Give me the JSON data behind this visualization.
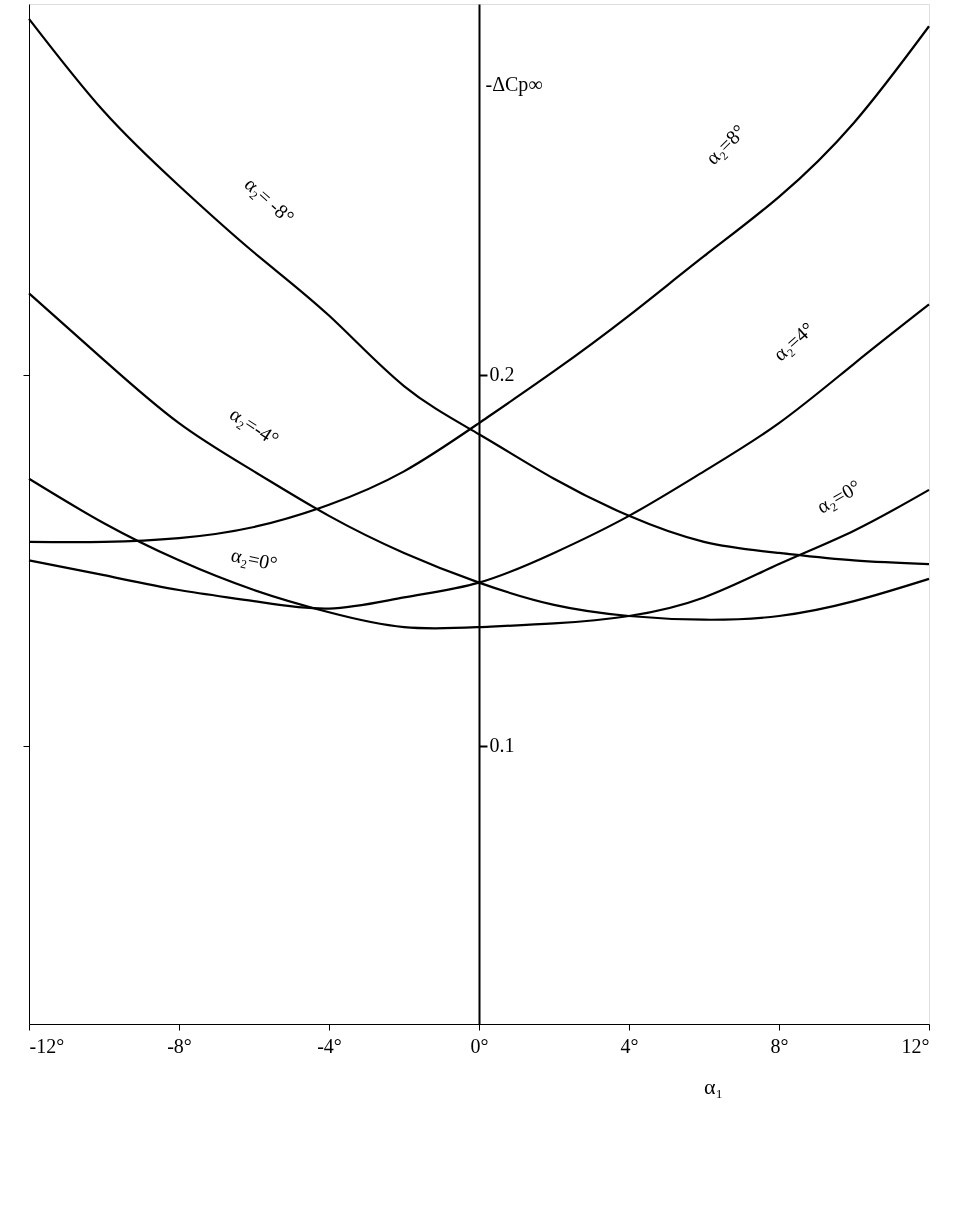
{
  "chart_data": {
    "type": "line",
    "xlabel": "α₁",
    "ylabel": "-ΔCp∞",
    "x": [
      -12,
      -10,
      -8,
      -6,
      -4,
      -2,
      0,
      2,
      4,
      6,
      8,
      10,
      12
    ],
    "series": [
      {
        "color": "#000000",
        "values": [
          0.296,
          0.271,
          0.251,
          0.233,
          0.216,
          0.197,
          0.184,
          0.172,
          0.162,
          0.155,
          0.152,
          0.15,
          0.149
        ]
      },
      {
        "color": "#000000",
        "values": [
          0.222,
          0.204,
          0.187,
          0.174,
          0.162,
          0.152,
          0.144,
          0.138,
          0.135,
          0.134,
          0.135,
          0.139,
          0.145
        ]
      },
      {
        "color": "#000000",
        "values": [
          0.172,
          0.16,
          0.15,
          0.142,
          0.136,
          0.132,
          0.132,
          0.133,
          0.135,
          0.14,
          0.149,
          0.158,
          0.169
        ]
      },
      {
        "color": "#000000",
        "values": [
          0.15,
          0.146,
          0.142,
          0.139,
          0.137,
          0.14,
          0.144,
          0.152,
          0.162,
          0.174,
          0.187,
          0.203,
          0.219
        ]
      },
      {
        "color": "#000000",
        "values": [
          0.155,
          0.155,
          0.156,
          0.159,
          0.165,
          0.174,
          0.187,
          0.201,
          0.216,
          0.232,
          0.248,
          0.268,
          0.294
        ]
      }
    ],
    "annotations": [
      "α₂= -8°",
      "α₂=-4°",
      "α₂=0°",
      "α₂=0°",
      "α₂=4°",
      "α₂=8°"
    ],
    "xlim": [
      -12,
      12
    ],
    "ylim": [
      0.025,
      0.3
    ],
    "xticks": [
      {
        "value": -12,
        "label": "-12°"
      },
      {
        "value": -8,
        "label": "-8°"
      },
      {
        "value": -4,
        "label": "-4°"
      },
      {
        "value": 0,
        "label": "0°"
      },
      {
        "value": 4,
        "label": "4°"
      },
      {
        "value": 8,
        "label": "8°"
      },
      {
        "value": 12,
        "label": "12°"
      }
    ],
    "yticks": [
      0.1,
      0.2
    ],
    "grid": false,
    "marker": "none",
    "line_style": "solid"
  }
}
